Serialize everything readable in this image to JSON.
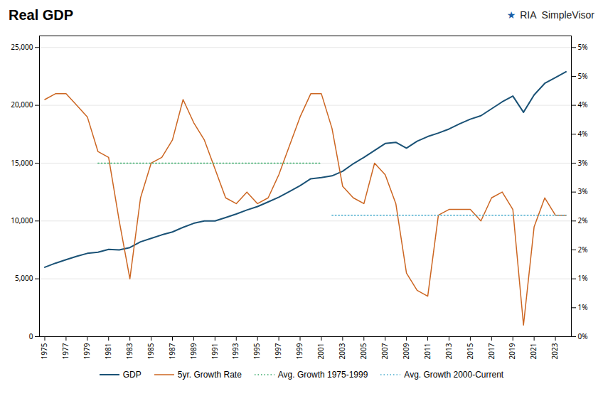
{
  "chart_data": {
    "type": "line",
    "title": "Real GDP",
    "annotations": [
      {
        "text": "★",
        "color": "#1a5fa8"
      },
      {
        "text": "RIA  SimpleVisor",
        "color": "#222222"
      }
    ],
    "series": [
      {
        "name": "GDP",
        "color": "#1a5276",
        "line_style": "solid",
        "x": [
          1975,
          1976,
          1977,
          1978,
          1979,
          1980,
          1981,
          1982,
          1983,
          1984,
          1985,
          1986,
          1987,
          1988,
          1989,
          1990,
          1991,
          1992,
          1993,
          1994,
          1995,
          1996,
          1997,
          1998,
          1999,
          2000,
          2001,
          2002,
          2003,
          2004,
          2005,
          2006,
          2007,
          2008,
          2009,
          2010,
          2011,
          2012,
          2013,
          2014,
          2015,
          2016,
          2017,
          2018,
          2019,
          2020,
          2021,
          2022,
          2023,
          2024
        ],
        "values": [
          6000,
          6350,
          6650,
          6950,
          7200,
          7300,
          7550,
          7500,
          7700,
          8200,
          8500,
          8800,
          9050,
          9450,
          9800,
          10000,
          10000,
          10300,
          10600,
          10950,
          11250,
          11650,
          12050,
          12550,
          13050,
          13650,
          13750,
          13900,
          14300,
          14950,
          15500,
          16100,
          16700,
          16800,
          16300,
          16900,
          17300,
          17600,
          17950,
          18400,
          18800,
          19100,
          19700,
          20300,
          20800,
          19400,
          20900,
          21900,
          22400,
          22900
        ]
      },
      {
        "name": "5yr. Growth Rate",
        "color": "#cc6622",
        "line_style": "solid",
        "axis": "y2",
        "x": [
          1975,
          1976,
          1977,
          1978,
          1979,
          1980,
          1981,
          1982,
          1983,
          1984,
          1985,
          1986,
          1987,
          1988,
          1989,
          1990,
          1991,
          1992,
          1993,
          1994,
          1995,
          1996,
          1997,
          1998,
          1999,
          2000,
          2001,
          2002,
          2003,
          2004,
          2005,
          2006,
          2007,
          2008,
          2009,
          2010,
          2011,
          2012,
          2013,
          2014,
          2015,
          2016,
          2017,
          2018,
          2019,
          2020,
          2021,
          2022,
          2023,
          2024
        ],
        "values": [
          0.041,
          0.042,
          0.042,
          0.04,
          0.038,
          0.032,
          0.031,
          0.02,
          0.01,
          0.024,
          0.03,
          0.031,
          0.034,
          0.041,
          0.037,
          0.034,
          0.029,
          0.024,
          0.023,
          0.025,
          0.023,
          0.024,
          0.028,
          0.033,
          0.038,
          0.042,
          0.042,
          0.036,
          0.026,
          0.024,
          0.023,
          0.03,
          0.028,
          0.023,
          0.011,
          0.008,
          0.007,
          0.021,
          0.022,
          0.022,
          0.022,
          0.02,
          0.024,
          0.025,
          0.022,
          0.002,
          0.019,
          0.024,
          0.021,
          0.021
        ]
      },
      {
        "name": "Avg. Growth 1975-1999",
        "color": "#3aaa6a",
        "line_style": "dotted",
        "axis": "y2",
        "x": [
          1980,
          2001
        ],
        "values": [
          0.03,
          0.03
        ]
      },
      {
        "name": "Avg. Growth 2000-Current",
        "color": "#44aacc",
        "line_style": "dotted",
        "axis": "y2",
        "x": [
          2002,
          2024
        ],
        "values": [
          0.021,
          0.021
        ]
      }
    ],
    "xlim": [
      1974.5,
      2024.5
    ],
    "xticks": [
      1975,
      1977,
      1979,
      1981,
      1983,
      1985,
      1987,
      1989,
      1991,
      1993,
      1995,
      1997,
      1999,
      2001,
      2003,
      2005,
      2007,
      2009,
      2011,
      2013,
      2015,
      2017,
      2019,
      2021,
      2023
    ],
    "ylim": [
      0,
      26000
    ],
    "yticks": [
      0,
      {
        "value": 5000,
        "label": "5,000"
      },
      {
        "value": 10000,
        "label": "10,000"
      },
      {
        "value": 15000,
        "label": "15,000"
      },
      {
        "value": 20000,
        "label": "20,000"
      },
      {
        "value": 25000,
        "label": "25,000"
      }
    ],
    "y2lim": [
      0,
      0.052
    ],
    "y2ticks": [
      {
        "value": 0.0,
        "label": "0%"
      },
      {
        "value": 0.005,
        "label": "1%"
      },
      {
        "value": 0.01,
        "label": "1%"
      },
      {
        "value": 0.015,
        "label": "2%"
      },
      {
        "value": 0.02,
        "label": "2%"
      },
      {
        "value": 0.025,
        "label": "3%"
      },
      {
        "value": 0.03,
        "label": "3%"
      },
      {
        "value": 0.035,
        "label": "4%"
      },
      {
        "value": 0.04,
        "label": "4%"
      },
      {
        "value": 0.045,
        "label": "5%"
      },
      {
        "value": 0.05,
        "label": "5%"
      }
    ],
    "grid": true,
    "legend": "bottom"
  }
}
